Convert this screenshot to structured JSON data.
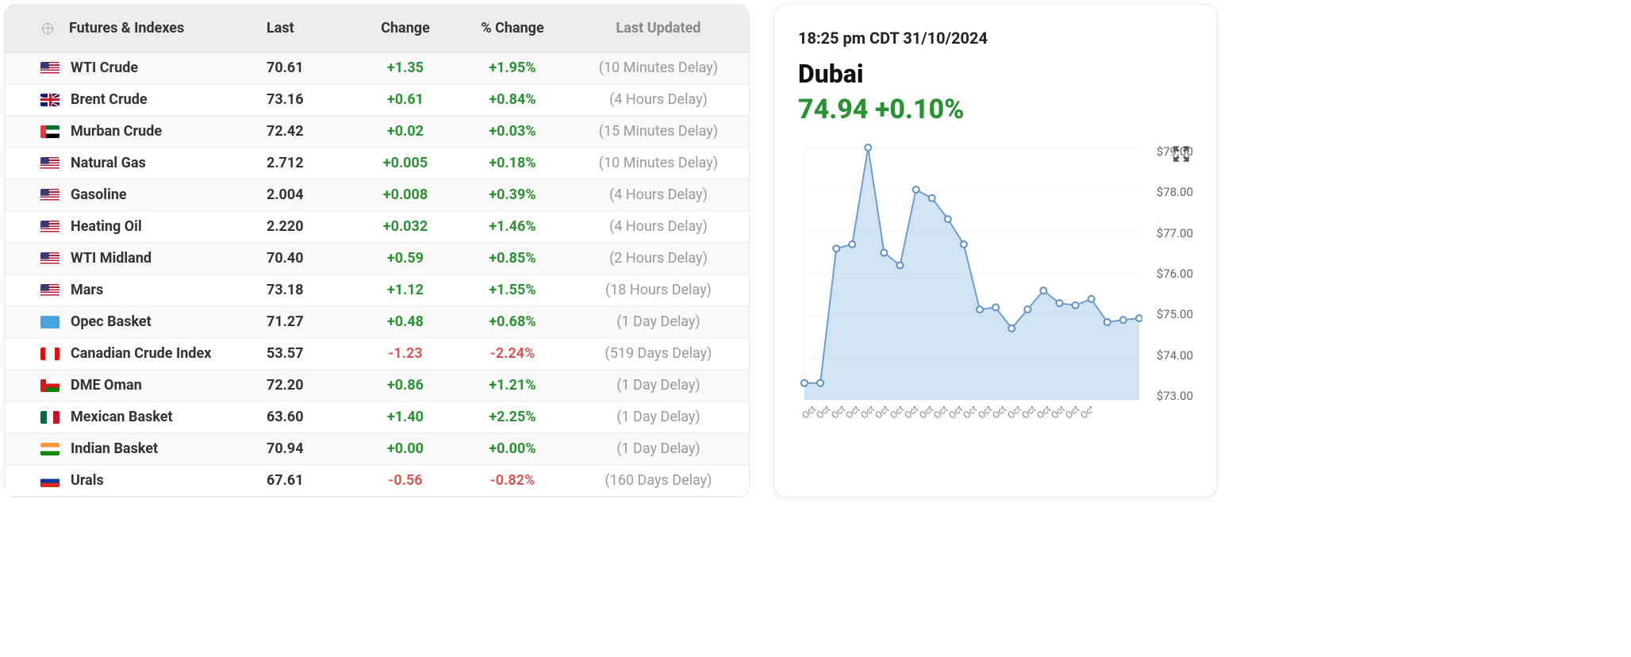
{
  "table": {
    "headers": {
      "name": "Futures & Indexes",
      "last": "Last",
      "change": "Change",
      "pct_change": "% Change",
      "updated": "Last Updated"
    },
    "rows": [
      {
        "flag": "us",
        "name": "WTI Crude",
        "last": "70.61",
        "change": "+1.35",
        "pct": "+1.95%",
        "updated": "(10 Minutes Delay)",
        "dir": "pos"
      },
      {
        "flag": "gb",
        "name": "Brent Crude",
        "last": "73.16",
        "change": "+0.61",
        "pct": "+0.84%",
        "updated": "(4 Hours Delay)",
        "dir": "pos"
      },
      {
        "flag": "ae",
        "name": "Murban Crude",
        "last": "72.42",
        "change": "+0.02",
        "pct": "+0.03%",
        "updated": "(15 Minutes Delay)",
        "dir": "pos"
      },
      {
        "flag": "us",
        "name": "Natural Gas",
        "last": "2.712",
        "change": "+0.005",
        "pct": "+0.18%",
        "updated": "(10 Minutes Delay)",
        "dir": "pos"
      },
      {
        "flag": "us",
        "name": "Gasoline",
        "last": "2.004",
        "change": "+0.008",
        "pct": "+0.39%",
        "updated": "(4 Hours Delay)",
        "dir": "pos"
      },
      {
        "flag": "us",
        "name": "Heating Oil",
        "last": "2.220",
        "change": "+0.032",
        "pct": "+1.46%",
        "updated": "(4 Hours Delay)",
        "dir": "pos"
      },
      {
        "flag": "us",
        "name": "WTI Midland",
        "last": "70.40",
        "change": "+0.59",
        "pct": "+0.85%",
        "updated": "(2 Hours Delay)",
        "dir": "pos"
      },
      {
        "flag": "us",
        "name": "Mars",
        "last": "73.18",
        "change": "+1.12",
        "pct": "+1.55%",
        "updated": "(18 Hours Delay)",
        "dir": "pos"
      },
      {
        "flag": "opec",
        "name": "Opec Basket",
        "last": "71.27",
        "change": "+0.48",
        "pct": "+0.68%",
        "updated": "(1 Day Delay)",
        "dir": "pos"
      },
      {
        "flag": "ca",
        "name": "Canadian Crude Index",
        "last": "53.57",
        "change": "-1.23",
        "pct": "-2.24%",
        "updated": "(519 Days Delay)",
        "dir": "neg"
      },
      {
        "flag": "om",
        "name": "DME Oman",
        "last": "72.20",
        "change": "+0.86",
        "pct": "+1.21%",
        "updated": "(1 Day Delay)",
        "dir": "pos"
      },
      {
        "flag": "mx",
        "name": "Mexican Basket",
        "last": "63.60",
        "change": "+1.40",
        "pct": "+2.25%",
        "updated": "(1 Day Delay)",
        "dir": "pos"
      },
      {
        "flag": "in",
        "name": "Indian Basket",
        "last": "70.94",
        "change": "+0.00",
        "pct": "+0.00%",
        "updated": "(1 Day Delay)",
        "dir": "pos"
      },
      {
        "flag": "ru",
        "name": "Urals",
        "last": "67.61",
        "change": "-0.56",
        "pct": "-0.82%",
        "updated": "(160 Days Delay)",
        "dir": "neg"
      }
    ]
  },
  "flags": {
    "us": "linear-gradient(to bottom,#b22234 0 10%,#fff 10% 20%,#b22234 20% 30%,#fff 30% 40%,#b22234 40% 50%,#fff 50% 60%,#b22234 60% 70%,#fff 70% 80%,#b22234 80% 90%,#fff 90% 100%), linear-gradient(#3c3b6e,#3c3b6e)",
    "us_bg": "linear-gradient(#3c3b6e,#3c3b6e) 0 0/45% 54% no-repeat, repeating-linear-gradient(to bottom,#b22234 0 2px,#fff 2px 4px)",
    "gb": "conic-gradient(#012169 0 100%)",
    "ae": "linear-gradient(to right,#ef3340 0 30%, transparent 30%), linear-gradient(to bottom,#00732f 0 33%,#fff 33% 66%,#000 66% 100%)",
    "opec": "#4aa3df",
    "ca": "linear-gradient(to right,#ff0000 0 25%,#fff 25% 75%,#ff0000 75% 100%)",
    "om": "linear-gradient(to right,#db161b 0 30%, transparent 30%), linear-gradient(to bottom,#fff 0 33%,#db161b 33% 66%,#008000 66% 100%)",
    "mx": "linear-gradient(to right,#006847 0 33%,#fff 33% 66%,#ce1126 66% 100%)",
    "in": "linear-gradient(to bottom,#ff9933 0 33%,#fff 33% 66%,#138808 66% 100%)",
    "ru": "linear-gradient(to bottom,#fff 0 33%,#0039a6 33% 66%,#d52b1e 66% 100%)",
    "gb_bg": "linear-gradient(45deg,#012169 40%,#fff 40% 45%,#c8102e 45% 55%,#fff 55% 60%,#012169 60%), linear-gradient(-45deg,#012169 40%,#fff 40% 45%,#c8102e 45% 55%,#fff 55% 60%,#012169 60%)"
  },
  "chart": {
    "timestamp": "18:25 pm CDT 31/10/2024",
    "title": "Dubai",
    "value": "74.94 +0.10%",
    "type": "area",
    "line_color": "#6b9fd0",
    "fill_color": "#bdd8ef",
    "fill_opacity": 0.7,
    "marker_color": "#5a92c9",
    "marker_fill": "#ffffff",
    "marker_radius": 4,
    "line_width": 2,
    "background_color": "#ffffff",
    "grid_color": "#f0f0f0",
    "ylim": [
      73,
      79
    ],
    "ytick_step": 1,
    "y_ticks": [
      "$79.00",
      "$78.00",
      "$77.00",
      "$76.00",
      "$75.00",
      "$74.00",
      "$73.00"
    ],
    "x_label": "Oct",
    "x_count": 21,
    "data": [
      73.4,
      73.4,
      76.6,
      76.7,
      79.0,
      76.5,
      76.2,
      78.0,
      77.8,
      77.3,
      76.7,
      75.15,
      75.2,
      74.7,
      75.15,
      75.6,
      75.3,
      75.25,
      75.4,
      74.85,
      74.9,
      74.94
    ]
  }
}
